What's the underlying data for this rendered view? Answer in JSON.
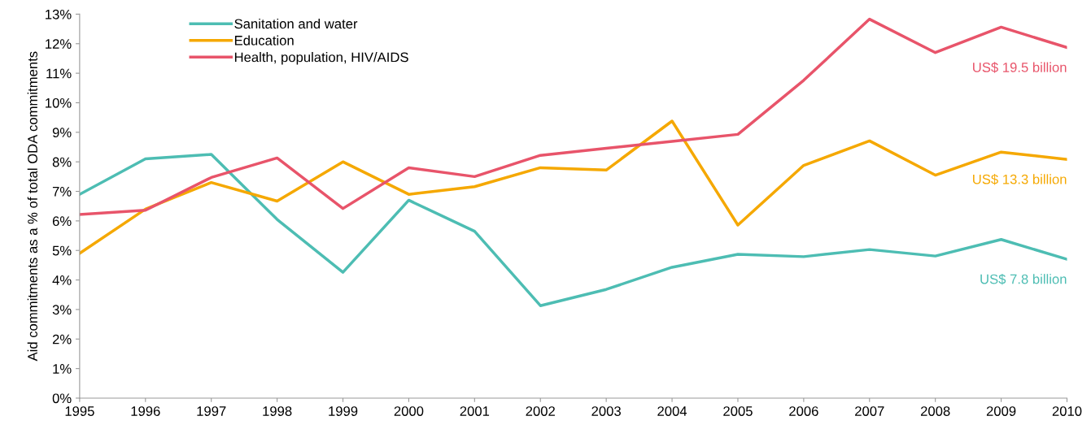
{
  "chart_data": {
    "type": "line",
    "ylabel": "Aid commitments as a % of total ODA commitments",
    "x": [
      1995,
      1996,
      1997,
      1998,
      1999,
      2000,
      2001,
      2002,
      2003,
      2004,
      2005,
      2006,
      2007,
      2008,
      2009,
      2010
    ],
    "series": [
      {
        "name": "Sanitation and water",
        "color": "#4dbdb3",
        "values": [
          6.9,
          8.1,
          8.25,
          6.05,
          4.26,
          6.7,
          5.65,
          3.13,
          3.68,
          4.43,
          4.87,
          4.79,
          5.03,
          4.81,
          5.37,
          4.7
        ]
      },
      {
        "name": "Education",
        "color": "#f5a800",
        "values": [
          4.9,
          6.4,
          7.3,
          6.67,
          8.0,
          6.9,
          7.16,
          7.8,
          7.72,
          9.38,
          5.86,
          7.88,
          8.71,
          7.55,
          8.33,
          8.08
        ]
      },
      {
        "name": "Health, population, HIV/AIDS",
        "color": "#e8546a",
        "values": [
          6.22,
          6.36,
          7.47,
          8.13,
          6.42,
          7.8,
          7.5,
          8.22,
          8.46,
          8.69,
          8.93,
          10.76,
          12.83,
          11.7,
          12.56,
          11.87
        ]
      }
    ],
    "annotations": [
      "US$ 19.5 billion",
      "US$ 13.3 billion",
      "US$ 7.8 billion"
    ],
    "xlim": [
      1995,
      2010
    ],
    "xticks": [
      1995,
      1996,
      1997,
      1998,
      1999,
      2000,
      2001,
      2002,
      2003,
      2004,
      2005,
      2006,
      2007,
      2008,
      2009,
      2010
    ],
    "ylim": [
      0,
      13
    ],
    "yticks": [
      {
        "value": 0,
        "label": "0%"
      },
      {
        "value": 1,
        "label": "1%"
      },
      {
        "value": 2,
        "label": "2%"
      },
      {
        "value": 3,
        "label": "3%"
      },
      {
        "value": 4,
        "label": "4%"
      },
      {
        "value": 5,
        "label": "5%"
      },
      {
        "value": 6,
        "label": "6%"
      },
      {
        "value": 7,
        "label": "7%"
      },
      {
        "value": 8,
        "label": "8%"
      },
      {
        "value": 9,
        "label": "9%"
      },
      {
        "value": 10,
        "label": "10%"
      },
      {
        "value": 11,
        "label": "11%"
      },
      {
        "value": 12,
        "label": "12%"
      },
      {
        "value": 13,
        "label": "13%"
      }
    ],
    "grid": false,
    "legend": "top left",
    "marker": "none",
    "line_style": "solid"
  }
}
